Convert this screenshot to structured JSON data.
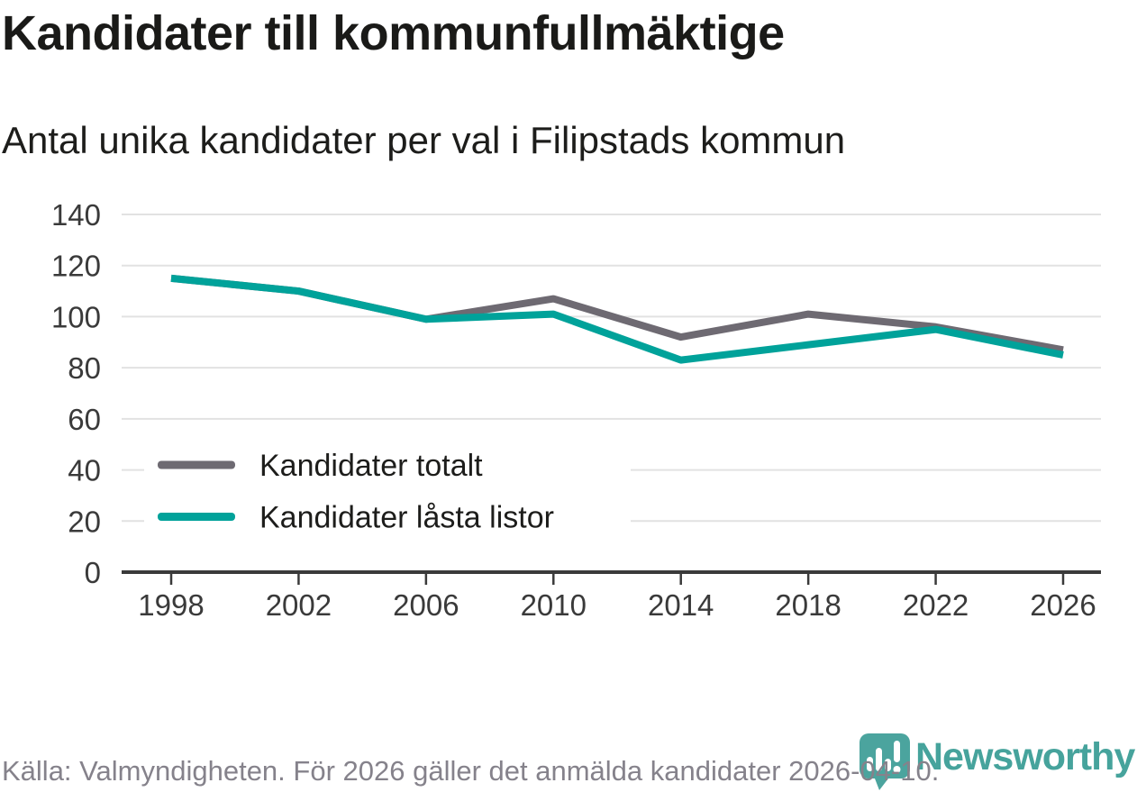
{
  "header": {
    "title": "Kandidater till kommunfullmäktige",
    "subtitle": "Antal unika kandidater per val i Filipstads kommun"
  },
  "chart_data": {
    "type": "line",
    "title": "Kandidater till kommunfullmäktige",
    "subtitle": "Antal unika kandidater per val i Filipstads kommun",
    "categories": [
      "1998",
      "2002",
      "2006",
      "2010",
      "2014",
      "2018",
      "2022",
      "2026"
    ],
    "series": [
      {
        "name": "Kandidater totalt",
        "color": "#6e6a72",
        "values": [
          115,
          110,
          99,
          107,
          92,
          101,
          96,
          87
        ]
      },
      {
        "name": "Kandidater låsta listor",
        "color": "#00a29a",
        "values": [
          115,
          110,
          99,
          101,
          83,
          89,
          95,
          85
        ]
      }
    ],
    "ylim": [
      0,
      140
    ],
    "yticks": [
      0,
      20,
      40,
      60,
      80,
      100,
      120,
      140
    ],
    "xlabel": "",
    "ylabel": "",
    "grid": "horizontal-only",
    "legend_position": "inside-lower-left"
  },
  "footer": {
    "source": "Källa: Valmyndigheten. För 2026 gäller det anmälda kandidater 2026-04-10.",
    "brand": "Newsworthy"
  },
  "icons": {
    "logo_pin": "newsworthy-pin-icon"
  },
  "colors": {
    "series_total": "#6e6a72",
    "series_locked": "#00a29a",
    "grid_line": "#e2e2e2",
    "axis_line": "#3a3a3a",
    "tick_label": "#3a3a3a",
    "legend_text": "#1d1d1b",
    "footer_text": "#85828b",
    "logo_teal": "#4ba49e",
    "title_text": "#1a1a18",
    "background": "#ffffff"
  }
}
